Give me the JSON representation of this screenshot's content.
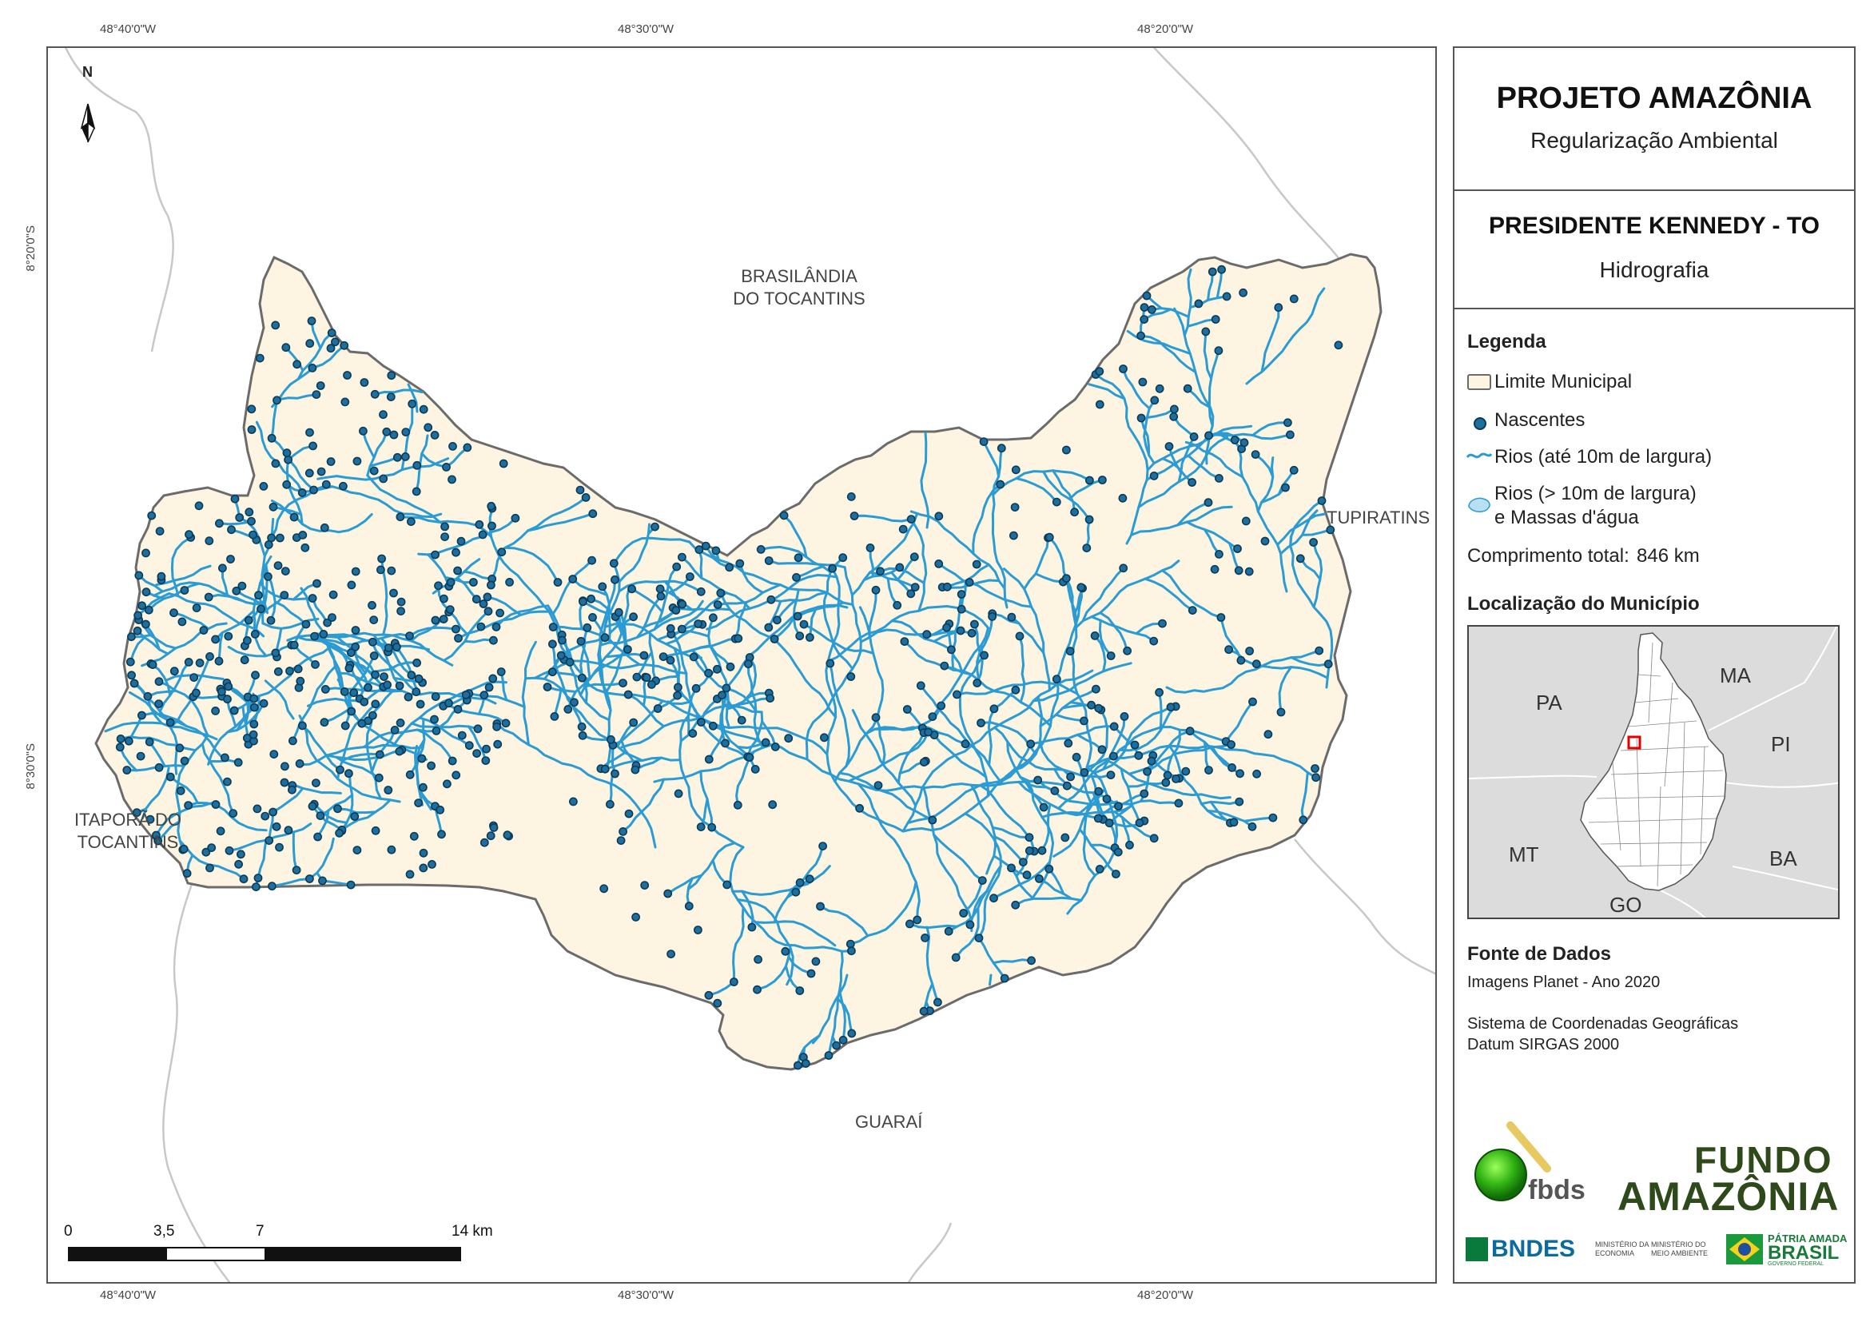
{
  "coordinates": {
    "top_longitudes": [
      "48°40'0\"W",
      "48°30'0\"W",
      "48°20'0\"W"
    ],
    "bottom_longitudes": [
      "48°40'0\"W",
      "48°30'0\"W",
      "48°20'0\"W"
    ],
    "left_latitudes": [
      "8°20'0\"S",
      "8°30'0\"S"
    ]
  },
  "map": {
    "north_label": "N",
    "places": {
      "brasilandia": [
        "BRASILÂNDIA",
        "DO TOCANTINS"
      ],
      "tupiratins": "TUPIRATINS",
      "itapora": [
        "ITAPORÃ DO",
        "TOCANTINS"
      ],
      "guarai": "GUARAÍ"
    },
    "colors": {
      "municipality_fill": "#fdf5e1",
      "municipality_border": "#6b6b6b",
      "river": "#2b9bd4",
      "spring_fill": "#1f6f9e",
      "spring_stroke": "#0b3a57",
      "neighbor_border": "#c8c8c8"
    },
    "scale_bar": {
      "labels": [
        "0",
        "3,5",
        "7",
        "14 km"
      ]
    }
  },
  "panel": {
    "title": "PROJETO AMAZÔNIA",
    "subtitle": "Regularização Ambiental",
    "municipality": "PRESIDENTE KENNEDY - TO",
    "theme": "Hidrografia",
    "legend": {
      "heading": "Legenda",
      "items": {
        "limit": "Limite Municipal",
        "springs": "Nascentes",
        "rivers_small": "Rios (até 10m de largura)",
        "rivers_large_1": "Rios (> 10m de largura)",
        "rivers_large_2": "e Massas d'água"
      },
      "total_length_label": "Comprimento total:",
      "total_length_value": "846 km"
    },
    "location": {
      "heading": "Localização do Município",
      "states": [
        "PA",
        "MA",
        "PI",
        "MT",
        "BA",
        "GO"
      ]
    },
    "sources": {
      "heading": "Fonte de Dados",
      "line1": "Imagens Planet - Ano 2020",
      "line2": "Sistema de Coordenadas Geográficas",
      "line3": "Datum SIRGAS 2000"
    },
    "logos": {
      "fbds": "fbds",
      "fundo_1": "FUNDO",
      "fundo_2": "AMAZÔNIA",
      "bndes": "BNDES",
      "min_eco_1": "MINISTÉRIO DA",
      "min_eco_2": "ECONOMIA",
      "min_amb_1": "MINISTÉRIO DO",
      "min_amb_2": "MEIO AMBIENTE",
      "brasil_1": "PÁTRIA AMADA",
      "brasil_2": "BRASIL",
      "brasil_3": "GOVERNO FEDERAL"
    }
  }
}
